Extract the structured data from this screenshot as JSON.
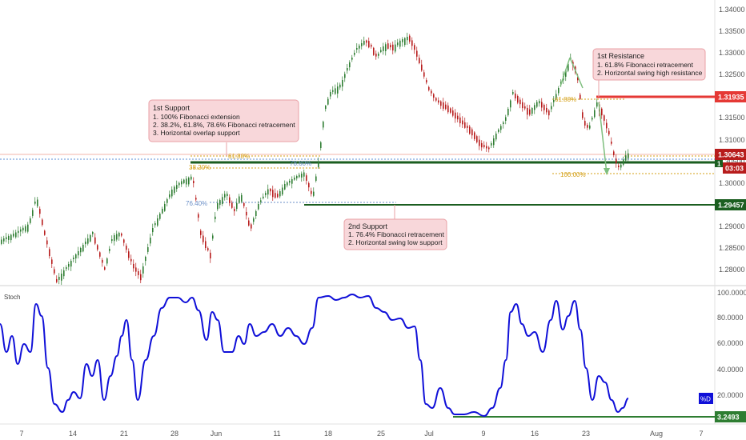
{
  "price_panel": {
    "y_axis_ticks": [
      "1.34000",
      "1.33500",
      "1.33000",
      "1.32500",
      "1.32000",
      "1.31500",
      "1.31000",
      "1.30500",
      "1.30000",
      "1.29500",
      "1.29000",
      "1.28500",
      "1.28000"
    ],
    "tag_resistance": "1.31935",
    "tag_current": "1.30643",
    "tag_support_1_marker": "1",
    "tag_countdown": "03:03",
    "tag_support_2": "1.29457",
    "fib_labels": {
      "fib_618_left": "61.80%",
      "fib_382_left": "38.20%",
      "fib_786_left": "78.60%",
      "fib_764": "76.40%",
      "fib_618_right": "61.80%",
      "fib_100": "100.00%"
    },
    "notes": {
      "support_1": {
        "title": "1st Support",
        "lines": [
          "1. 100% Fibonacci extension",
          "2. 38.2%, 61.8%, 78.6% Fibonacci retracement",
          "3. Horizontal overlap support"
        ]
      },
      "support_2": {
        "title": "2nd Support",
        "lines": [
          "1. 76.4% Fibonacci retracement",
          "2. Horizontal swing low support"
        ]
      },
      "resistance_1": {
        "title": "1st Resistance",
        "lines": [
          "1. 61.8% Fibonacci retracement",
          "2. Horizontal swing high resistance"
        ]
      }
    },
    "colors": {
      "bull": "#2e7d32",
      "bear": "#b71c1c",
      "resistance": "#e53935",
      "support": "#1b5e20",
      "note_bg": "#f8d7da",
      "note_border": "#e9a0a6",
      "fib": "#d4a017",
      "fib_blue": "#6b8fc7",
      "stoch": "#1010d8"
    }
  },
  "stoch_panel": {
    "indicator_label": "Stoch",
    "y_axis_ticks": [
      "100.0000",
      "80.0000",
      "60.0000",
      "40.0000",
      "20.0000"
    ],
    "series_tag": "%D",
    "value_tag": "3.2493"
  },
  "x_axis": {
    "ticks": [
      "7",
      "14",
      "21",
      "28",
      "Jun",
      "11",
      "18",
      "25",
      "Jul",
      "9",
      "16",
      "23",
      "Aug",
      "7"
    ]
  }
}
